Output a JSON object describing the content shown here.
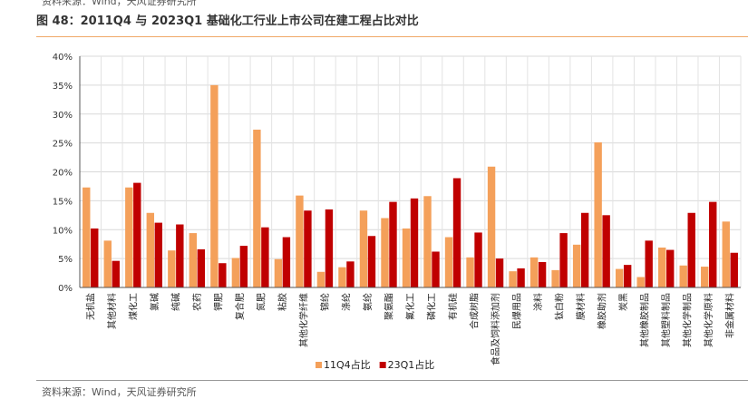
{
  "header": {
    "top_source": "资料来源：Wind，天风证券研究所",
    "title": "图 48：2011Q4 与 2023Q1 基础化工行业上市公司在建工程占比对比"
  },
  "footer": {
    "source": "资料来源：Wind，天风证券研究所"
  },
  "chart_data": {
    "type": "bar",
    "title": "",
    "xlabel": "",
    "ylabel": "",
    "ylim": [
      0,
      40
    ],
    "y_ticks": [
      "0%",
      "5%",
      "10%",
      "15%",
      "20%",
      "25%",
      "30%",
      "35%",
      "40%"
    ],
    "y_tick_values": [
      0,
      5,
      10,
      15,
      20,
      25,
      30,
      35,
      40
    ],
    "grid": true,
    "legend_position": "bottom-center",
    "categories": [
      "无机盐",
      "其他材料",
      "煤化工",
      "氯碱",
      "纯碱",
      "农药",
      "钾肥",
      "复合肥",
      "氮肥",
      "粘胶",
      "其他化学纤维",
      "锦纶",
      "涤纶",
      "氨纶",
      "聚氨酯",
      "氟化工",
      "磷化工",
      "有机硅",
      "合成树脂",
      "食品及饲料添加剂",
      "民爆用品",
      "涂料",
      "钛白粉",
      "膜材料",
      "橡胶助剂",
      "炭黑",
      "其他橡胶制品",
      "其他塑料制品",
      "其他化学制品",
      "其他化学原料",
      "非金属材料"
    ],
    "series": [
      {
        "name": "11Q4占比",
        "color": "#f4a05a",
        "values": [
          17.3,
          8.1,
          17.3,
          12.9,
          6.4,
          9.4,
          35.0,
          5.1,
          27.3,
          4.9,
          15.9,
          2.7,
          3.5,
          13.3,
          12.0,
          10.2,
          15.8,
          8.7,
          5.2,
          20.9,
          2.8,
          5.2,
          3.0,
          7.4,
          25.1,
          3.2,
          1.8,
          6.9,
          3.8,
          3.6,
          11.4
        ]
      },
      {
        "name": "23Q1占比",
        "color": "#c00000",
        "values": [
          10.2,
          4.6,
          18.1,
          11.2,
          10.9,
          6.6,
          4.2,
          7.2,
          10.4,
          8.7,
          13.3,
          13.5,
          4.5,
          8.9,
          14.8,
          15.4,
          6.2,
          18.9,
          9.5,
          5.0,
          3.3,
          4.4,
          9.4,
          12.9,
          12.5,
          3.9,
          8.1,
          6.5,
          12.9,
          14.8,
          6.0
        ]
      }
    ]
  }
}
